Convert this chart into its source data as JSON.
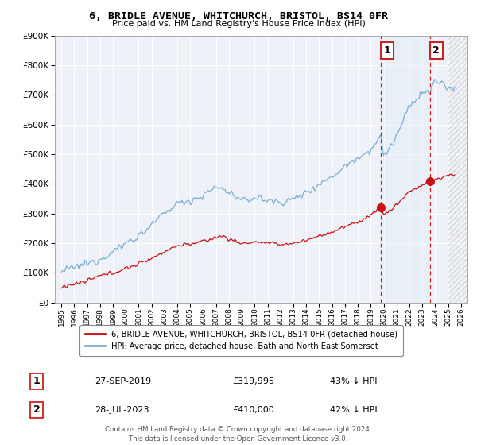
{
  "title": "6, BRIDLE AVENUE, WHITCHURCH, BRISTOL, BS14 0FR",
  "subtitle": "Price paid vs. HM Land Registry's House Price Index (HPI)",
  "background_color": "#ffffff",
  "plot_bg_color": "#eef2f8",
  "grid_color": "#ffffff",
  "hpi_color": "#7bafd4",
  "price_color": "#cc1111",
  "dashed_color": "#cc2222",
  "shade_color": "#ddeaf7",
  "hatch_color": "#bbbbbb",
  "ylim": [
    0,
    900000
  ],
  "yticks": [
    0,
    100000,
    200000,
    300000,
    400000,
    500000,
    600000,
    700000,
    800000,
    900000
  ],
  "xlim_start": 1994.5,
  "xlim_end": 2026.5,
  "purchase1_year": 2019.75,
  "purchase1_price": 319995,
  "purchase1_label": "1",
  "purchase2_year": 2023.58,
  "purchase2_price": 410000,
  "purchase2_label": "2",
  "hatch_start": 2025.0,
  "legend_property": "6, BRIDLE AVENUE, WHITCHURCH, BRISTOL, BS14 0FR (detached house)",
  "legend_hpi": "HPI: Average price, detached house, Bath and North East Somerset",
  "note1_label": "1",
  "note1_date": "27-SEP-2019",
  "note1_price": "£319,995",
  "note1_pct": "43% ↓ HPI",
  "note2_label": "2",
  "note2_date": "28-JUL-2023",
  "note2_price": "£410,000",
  "note2_pct": "42% ↓ HPI",
  "footer": "Contains HM Land Registry data © Crown copyright and database right 2024.\nThis data is licensed under the Open Government Licence v3.0."
}
